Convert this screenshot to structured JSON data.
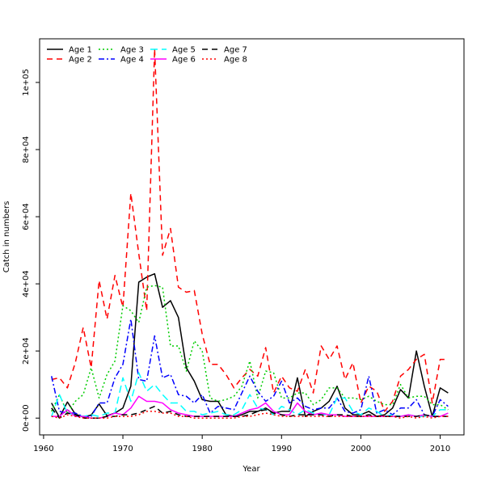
{
  "chart_data": {
    "type": "line",
    "title": "",
    "xlabel": "Year",
    "ylabel": "Catch in numbers",
    "xlim": [
      1959.5,
      2013
    ],
    "ylim": [
      -5000,
      113000
    ],
    "x_ticks": [
      1960,
      1970,
      1980,
      1990,
      2000,
      2010
    ],
    "x_tick_labels": [
      "1960",
      "1970",
      "1980",
      "1990",
      "2000",
      "2010"
    ],
    "y_ticks": [
      0,
      20000,
      40000,
      60000,
      80000,
      100000
    ],
    "y_tick_labels": [
      "0e+00",
      "2e+04",
      "4e+04",
      "6e+04",
      "8e+04",
      "1e+05"
    ],
    "grid": false,
    "legend_position": "top-left",
    "years": [
      1961,
      1962,
      1963,
      1964,
      1965,
      1966,
      1967,
      1968,
      1969,
      1970,
      1971,
      1972,
      1973,
      1974,
      1975,
      1976,
      1977,
      1978,
      1979,
      1980,
      1981,
      1982,
      1983,
      1984,
      1985,
      1986,
      1987,
      1988,
      1989,
      1990,
      1991,
      1992,
      1993,
      1994,
      1995,
      1996,
      1997,
      1998,
      1999,
      2000,
      2001,
      2002,
      2003,
      2004,
      2005,
      2006,
      2007,
      2008,
      2009,
      2010,
      2011
    ],
    "series": [
      {
        "name": "Age 1",
        "color": "#000000",
        "dash": "",
        "values": [
          4500,
          200,
          4800,
          1200,
          300,
          900,
          4200,
          700,
          1500,
          3000,
          9500,
          40500,
          42000,
          43000,
          33000,
          35000,
          30000,
          15000,
          11000,
          5500,
          5000,
          5000,
          1000,
          500,
          1000,
          2000,
          2000,
          3000,
          1500,
          2000,
          2000,
          12000,
          500,
          2000,
          3000,
          5000,
          9500,
          3000,
          1000,
          1000,
          2000,
          500,
          1000,
          3000,
          8500,
          6000,
          20000,
          9500,
          500,
          9000,
          7500
        ]
      },
      {
        "name": "Age 2",
        "color": "#ff0000",
        "dash": "7,5",
        "values": [
          11500,
          12000,
          9000,
          16500,
          27000,
          15000,
          41000,
          29500,
          42500,
          33000,
          67000,
          49000,
          32000,
          110000,
          48500,
          56500,
          39000,
          37500,
          38000,
          25000,
          16000,
          16000,
          13000,
          9000,
          12000,
          14500,
          12500,
          21000,
          7500,
          12500,
          9000,
          8000,
          14500,
          7500,
          21500,
          17500,
          21500,
          11500,
          16500,
          4500,
          9500,
          8000,
          2000,
          5000,
          12500,
          14500,
          17500,
          19000,
          4500,
          17500,
          17500
        ]
      },
      {
        "name": "Age 3",
        "color": "#00cc00",
        "dash": "2,3",
        "values": [
          2000,
          7000,
          1500,
          5000,
          7000,
          15000,
          6000,
          13000,
          17000,
          33500,
          32000,
          28500,
          39000,
          39500,
          39000,
          21500,
          21500,
          14000,
          23000,
          20000,
          6000,
          5000,
          5500,
          6500,
          9500,
          17000,
          6000,
          14000,
          13500,
          6000,
          6000,
          7500,
          7500,
          4000,
          5500,
          9000,
          9000,
          6000,
          6000,
          5500,
          6500,
          5000,
          4000,
          4000,
          10000,
          6000,
          6500,
          6500,
          4000,
          4000,
          2500
        ]
      },
      {
        "name": "Age 4",
        "color": "#0000ff",
        "dash": "7,3,2,3",
        "values": [
          12500,
          2000,
          1500,
          1500,
          500,
          500,
          4500,
          4500,
          12000,
          16000,
          29500,
          11500,
          11000,
          24500,
          12000,
          13000,
          7000,
          6500,
          4500,
          7000,
          1500,
          3500,
          3000,
          2500,
          7500,
          12500,
          8000,
          5000,
          6500,
          11000,
          4500,
          6000,
          3500,
          2500,
          3000,
          3000,
          6000,
          2000,
          1500,
          2500,
          12500,
          1500,
          2500,
          1000,
          3000,
          3000,
          5500,
          1000,
          500,
          5500,
          3500
        ]
      },
      {
        "name": "Age 5",
        "color": "#00ffff",
        "dash": "9,5",
        "values": [
          500,
          7000,
          1500,
          1000,
          500,
          1000,
          500,
          1500,
          1500,
          12000,
          5000,
          13500,
          8000,
          10000,
          7000,
          4500,
          4500,
          2000,
          2000,
          1000,
          1500,
          2000,
          1000,
          1000,
          2500,
          7000,
          3000,
          2500,
          1000,
          3500,
          2500,
          1000,
          2500,
          1500,
          1000,
          1000,
          6000,
          6000,
          2000,
          1000,
          3000,
          2000,
          500,
          1000,
          500,
          1000,
          500,
          500,
          500,
          2500,
          2500
        ]
      },
      {
        "name": "Age 6",
        "color": "#ff00ff",
        "dash": "",
        "values": [
          500,
          500,
          2500,
          500,
          500,
          0,
          0,
          500,
          1500,
          1000,
          3000,
          6500,
          5000,
          5000,
          4500,
          2500,
          1500,
          1000,
          500,
          500,
          500,
          500,
          500,
          500,
          1500,
          2500,
          3000,
          4500,
          2000,
          1000,
          1000,
          4500,
          2000,
          1000,
          1500,
          1000,
          1000,
          500,
          500,
          500,
          500,
          500,
          500,
          500,
          500,
          1000,
          500,
          1000,
          500,
          500,
          1500
        ]
      },
      {
        "name": "Age 7",
        "color": "#000000",
        "dash": "7,5",
        "values": [
          3000,
          0,
          1500,
          1000,
          0,
          0,
          0,
          500,
          500,
          1000,
          1000,
          1500,
          2500,
          3500,
          1500,
          2000,
          1000,
          500,
          500,
          500,
          500,
          500,
          500,
          500,
          500,
          1000,
          2000,
          2500,
          1500,
          1000,
          500,
          1000,
          1000,
          1000,
          1000,
          500,
          1000,
          1000,
          500,
          500,
          1000,
          500,
          500,
          500,
          500,
          500,
          500,
          1000,
          500,
          500,
          500
        ]
      },
      {
        "name": "Age 8",
        "color": "#ff0000",
        "dash": "2,3",
        "values": [
          500,
          0,
          1000,
          500,
          0,
          0,
          0,
          0,
          500,
          500,
          500,
          1000,
          2000,
          2000,
          1500,
          1500,
          500,
          500,
          0,
          0,
          0,
          0,
          0,
          0,
          500,
          500,
          1000,
          1500,
          1000,
          500,
          500,
          500,
          500,
          500,
          500,
          500,
          500,
          500,
          500,
          500,
          500,
          500,
          500,
          500,
          0,
          500,
          0,
          500,
          0,
          500,
          500
        ]
      }
    ]
  }
}
